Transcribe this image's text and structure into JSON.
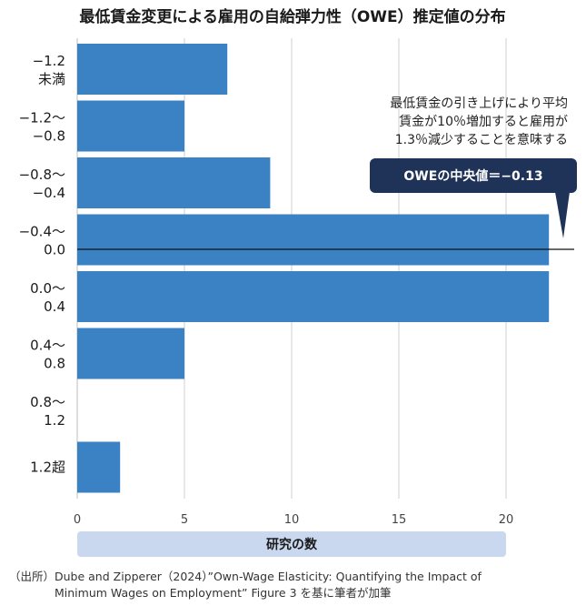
{
  "title": "最低賃金変更による雇用の自給弾力性（OWE）推定値の分布",
  "chart_data": {
    "type": "bar",
    "orientation": "horizontal",
    "categories": [
      [
        "−1.2",
        "未満"
      ],
      [
        "−1.2〜",
        "−0.8"
      ],
      [
        "−0.8〜",
        "−0.4"
      ],
      [
        "−0.4〜",
        "0.0"
      ],
      [
        "0.0〜",
        "0.4"
      ],
      [
        "0.4〜",
        "0.8"
      ],
      [
        "0.8〜",
        "1.2"
      ],
      [
        "1.2超"
      ]
    ],
    "values": [
      7,
      5,
      9,
      22,
      22,
      5,
      0,
      2
    ],
    "xlim": [
      0,
      23
    ],
    "xticks": [
      0,
      5,
      10,
      15,
      20
    ],
    "xlabel": "研究の数",
    "grid": true,
    "median_line": {
      "value": -0.13,
      "between_category": 3
    },
    "annotation": [
      "最低賃金の引き上げにより平均",
      "賃金が10％増加すると雇用が",
      "1.3％減少することを意味する"
    ],
    "callout": "OWEの中央値＝−0.13",
    "colors": {
      "bar": "#3b82c4",
      "callout": "#1f3358",
      "axis_band": "#c9d8ee",
      "grid": "#cfcfcf"
    }
  },
  "source": [
    "（出所）Dube and Zipperer（2024）”Own-Wage Elasticity: Quantifying the Impact of",
    "Minimum Wages on Employment” Figure 3 を基に筆者が加筆"
  ]
}
